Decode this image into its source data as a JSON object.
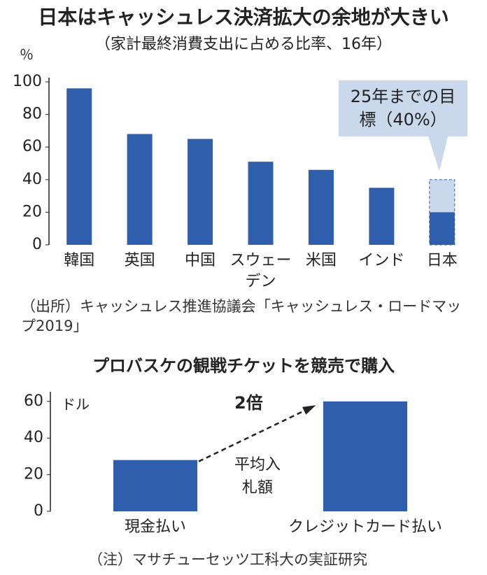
{
  "chart_data": [
    {
      "type": "bar",
      "title": "日本はキャッシュレス決済拡大の余地が大きい",
      "subtitle": "（家計最終消費支出に占める比率、16年）",
      "y_unit": "％",
      "categories": [
        "韓国",
        "英国",
        "中国",
        "スウェーデン",
        "米国",
        "インド",
        "日本"
      ],
      "values": [
        96,
        68,
        65,
        51,
        46,
        35,
        20
      ],
      "color": "#2f5fac",
      "target": 40,
      "target_color": "#c9d8ea",
      "annotation": "25年までの目標（40%）",
      "ylim": [
        0,
        100
      ],
      "yticks": [
        0,
        20,
        40,
        60,
        80,
        100
      ],
      "source": "（出所）キャッシュレス推進協議会「キャッシュレス・ロードマップ2019」"
    },
    {
      "type": "bar",
      "title": "プロバスケの観戦チケットを競売で購入",
      "y_unit": "ドル",
      "categories": [
        "現金払い",
        "クレジットカード払い"
      ],
      "values": [
        28,
        60
      ],
      "color": "#2f5fac",
      "multiplier": "2倍",
      "annotation": "平均入札額",
      "ylim": [
        0,
        63
      ],
      "yticks": [
        0,
        20,
        40,
        60
      ],
      "note": "（注）マサチューセッツ工科大の実証研究"
    }
  ]
}
